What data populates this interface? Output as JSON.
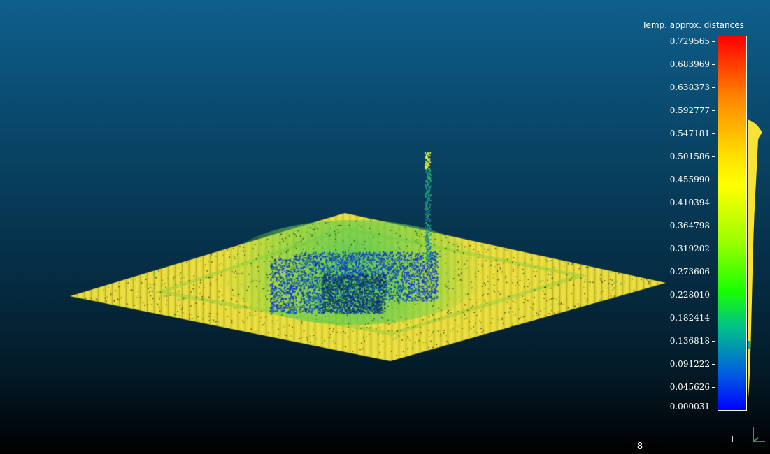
{
  "viewer": {
    "scalar_field_title": "Temp. approx. distances",
    "scale_bar_label": "8",
    "colors": {
      "background_top": "#0e5f8c",
      "background_bottom": "#000000",
      "ramp": [
        "#0000ff",
        "#0060e0",
        "#00c08a",
        "#1aff00",
        "#9cff00",
        "#ffff00",
        "#ffe500",
        "#ff8a00",
        "#ff0000"
      ]
    }
  },
  "colorbar": {
    "ticks": [
      "0.729565",
      "0.683969",
      "0.638373",
      "0.592777",
      "0.547181",
      "0.501586",
      "0.455990",
      "0.410394",
      "0.364798",
      "0.319202",
      "0.273606",
      "0.228010",
      "0.182414",
      "0.136818",
      "0.091222",
      "0.045626",
      "0.000031"
    ]
  },
  "icons": {
    "axes": "axes-trihedron-icon"
  }
}
